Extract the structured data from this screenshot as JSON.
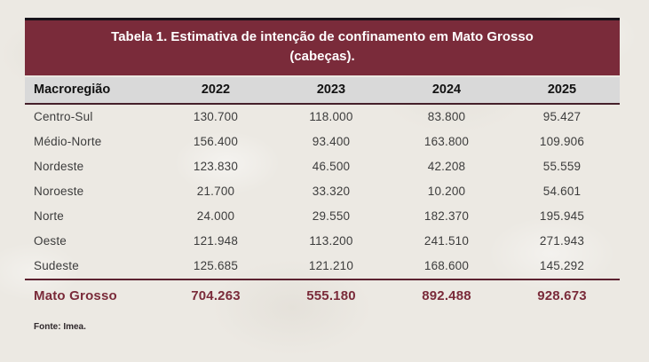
{
  "colors": {
    "maroon": "#7a2b3a",
    "header_bg": "#d9d9d9",
    "page_bg": "#ece9e3",
    "title_text": "#ffffff",
    "data_text": "#3c3c3c"
  },
  "table": {
    "title_line1": "Tabela 1. Estimativa de intenção de confinamento em Mato Grosso",
    "title_line2": "(cabeças).",
    "header": {
      "region": "Macroregião",
      "years": [
        "2022",
        "2023",
        "2024",
        "2025"
      ]
    },
    "rows": [
      {
        "region": "Centro-Sul",
        "values": [
          "130.700",
          "118.000",
          "83.800",
          "95.427"
        ]
      },
      {
        "region": "Médio-Norte",
        "values": [
          "156.400",
          "93.400",
          "163.800",
          "109.906"
        ]
      },
      {
        "region": "Nordeste",
        "values": [
          "123.830",
          "46.500",
          "42.208",
          "55.559"
        ]
      },
      {
        "region": "Noroeste",
        "values": [
          "21.700",
          "33.320",
          "10.200",
          "54.601"
        ]
      },
      {
        "region": "Norte",
        "values": [
          "24.000",
          "29.550",
          "182.370",
          "195.945"
        ]
      },
      {
        "region": "Oeste",
        "values": [
          "121.948",
          "113.200",
          "241.510",
          "271.943"
        ]
      },
      {
        "region": "Sudeste",
        "values": [
          "125.685",
          "121.210",
          "168.600",
          "145.292"
        ]
      }
    ],
    "total": {
      "region": "Mato Grosso",
      "values": [
        "704.263",
        "555.180",
        "892.488",
        "928.673"
      ]
    },
    "source": "Fonte: Imea."
  },
  "chart_data": {
    "type": "table",
    "title": "Tabela 1. Estimativa de intenção de confinamento em Mato Grosso (cabeças).",
    "categories": [
      "Centro-Sul",
      "Médio-Norte",
      "Nordeste",
      "Noroeste",
      "Norte",
      "Oeste",
      "Sudeste",
      "Mato Grosso"
    ],
    "series": [
      {
        "name": "2022",
        "values": [
          130700,
          156400,
          123830,
          21700,
          24000,
          121948,
          125685,
          704263
        ]
      },
      {
        "name": "2023",
        "values": [
          118000,
          93400,
          46500,
          33320,
          29550,
          113200,
          121210,
          555180
        ]
      },
      {
        "name": "2024",
        "values": [
          83800,
          163800,
          42208,
          10200,
          182370,
          241510,
          168600,
          892488
        ]
      },
      {
        "name": "2025",
        "values": [
          95427,
          109906,
          55559,
          54601,
          195945,
          271943,
          145292,
          928673
        ]
      }
    ],
    "source": "Fonte: Imea."
  }
}
